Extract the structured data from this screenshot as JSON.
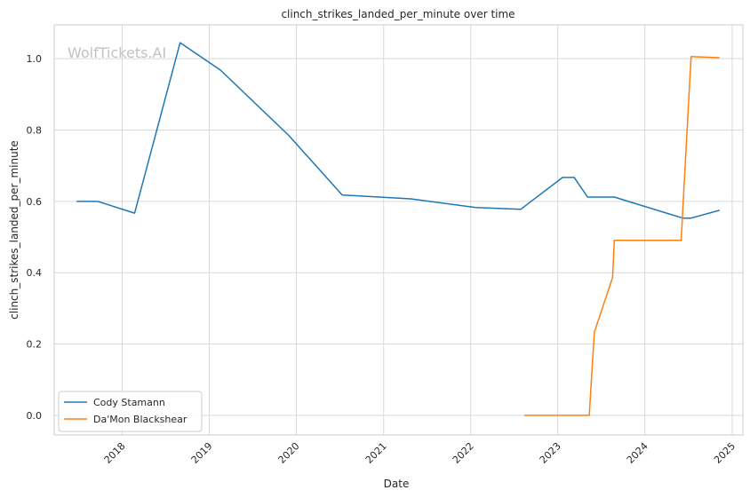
{
  "chart_data": {
    "type": "line",
    "title": "clinch_strikes_landed_per_minute over time",
    "xlabel": "Date",
    "ylabel": "clinch_strikes_landed_per_minute",
    "watermark": "WolfTickets.AI",
    "x_type": "date",
    "xlim": [
      "2017-03-22",
      "2025-02-15"
    ],
    "ylim": [
      -0.055,
      1.095
    ],
    "x_ticks": [
      {
        "date": "2018-01-01",
        "label": "2018"
      },
      {
        "date": "2019-01-01",
        "label": "2019"
      },
      {
        "date": "2020-01-01",
        "label": "2020"
      },
      {
        "date": "2021-01-01",
        "label": "2021"
      },
      {
        "date": "2022-01-01",
        "label": "2022"
      },
      {
        "date": "2023-01-01",
        "label": "2023"
      },
      {
        "date": "2024-01-01",
        "label": "2024"
      },
      {
        "date": "2025-01-01",
        "label": "2025"
      }
    ],
    "y_ticks": [
      {
        "value": 0.0,
        "label": "0.0"
      },
      {
        "value": 0.2,
        "label": "0.2"
      },
      {
        "value": 0.4,
        "label": "0.4"
      },
      {
        "value": 0.6,
        "label": "0.6"
      },
      {
        "value": 0.8,
        "label": "0.8"
      },
      {
        "value": 1.0,
        "label": "1.0"
      }
    ],
    "grid": true,
    "legend_position": "lower-left",
    "series": [
      {
        "name": "Cody Stamann",
        "color": "#1f77b4",
        "points": [
          {
            "x": "2017-06-24",
            "y": 0.6
          },
          {
            "x": "2017-09-21",
            "y": 0.6
          },
          {
            "x": "2018-02-22",
            "y": 0.567
          },
          {
            "x": "2018-09-01",
            "y": 1.045
          },
          {
            "x": "2019-02-17",
            "y": 0.968
          },
          {
            "x": "2019-11-30",
            "y": 0.785
          },
          {
            "x": "2020-07-11",
            "y": 0.618
          },
          {
            "x": "2021-04-24",
            "y": 0.607
          },
          {
            "x": "2022-01-22",
            "y": 0.583
          },
          {
            "x": "2022-07-30",
            "y": 0.578
          },
          {
            "x": "2023-01-21",
            "y": 0.667
          },
          {
            "x": "2023-03-11",
            "y": 0.667
          },
          {
            "x": "2023-05-06",
            "y": 0.612
          },
          {
            "x": "2023-08-26",
            "y": 0.612
          },
          {
            "x": "2024-06-08",
            "y": 0.553
          },
          {
            "x": "2024-07-13",
            "y": 0.553
          },
          {
            "x": "2024-11-09",
            "y": 0.575
          }
        ]
      },
      {
        "name": "Da'Mon Blackshear",
        "color": "#ff7f0e",
        "points": [
          {
            "x": "2022-08-13",
            "y": 0.0
          },
          {
            "x": "2023-05-13",
            "y": 0.0
          },
          {
            "x": "2023-06-03",
            "y": 0.233
          },
          {
            "x": "2023-08-19",
            "y": 0.387
          },
          {
            "x": "2023-08-26",
            "y": 0.491
          },
          {
            "x": "2024-06-01",
            "y": 0.491
          },
          {
            "x": "2024-07-13",
            "y": 1.006
          },
          {
            "x": "2024-11-09",
            "y": 1.003
          }
        ]
      }
    ]
  }
}
